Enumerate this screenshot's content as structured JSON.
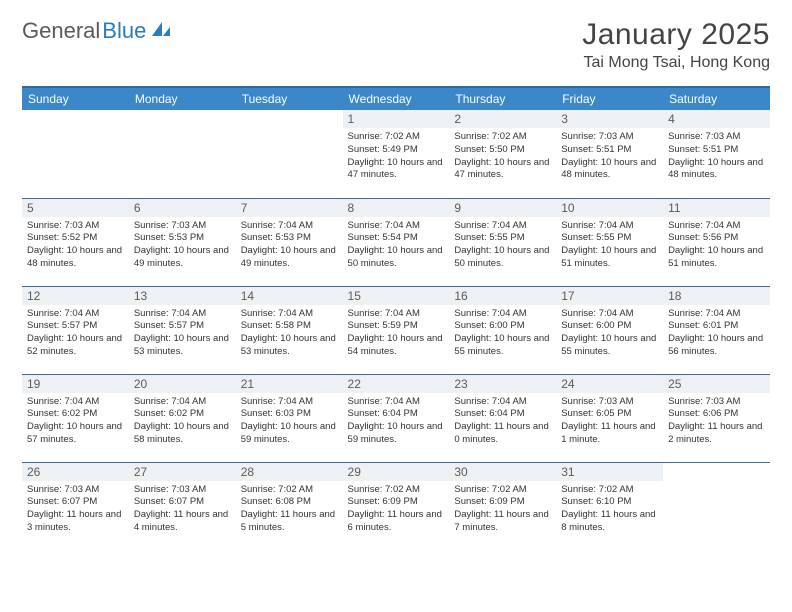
{
  "brand": {
    "part1": "General",
    "part2": "Blue"
  },
  "title": "January 2025",
  "location": "Tai Mong Tsai, Hong Kong",
  "colors": {
    "header_bg": "#3b87c8",
    "header_border_top": "#2b6aa0",
    "row_border": "#3b6f9e",
    "daynum_bg": "#eef1f4",
    "text": "#333333",
    "brand_gray": "#5a5a5a",
    "brand_blue": "#2b7bbf"
  },
  "weekdays": [
    "Sunday",
    "Monday",
    "Tuesday",
    "Wednesday",
    "Thursday",
    "Friday",
    "Saturday"
  ],
  "weeks": [
    [
      null,
      null,
      null,
      {
        "n": "1",
        "sr": "7:02 AM",
        "ss": "5:49 PM",
        "dl": "10 hours and 47 minutes."
      },
      {
        "n": "2",
        "sr": "7:02 AM",
        "ss": "5:50 PM",
        "dl": "10 hours and 47 minutes."
      },
      {
        "n": "3",
        "sr": "7:03 AM",
        "ss": "5:51 PM",
        "dl": "10 hours and 48 minutes."
      },
      {
        "n": "4",
        "sr": "7:03 AM",
        "ss": "5:51 PM",
        "dl": "10 hours and 48 minutes."
      }
    ],
    [
      {
        "n": "5",
        "sr": "7:03 AM",
        "ss": "5:52 PM",
        "dl": "10 hours and 48 minutes."
      },
      {
        "n": "6",
        "sr": "7:03 AM",
        "ss": "5:53 PM",
        "dl": "10 hours and 49 minutes."
      },
      {
        "n": "7",
        "sr": "7:04 AM",
        "ss": "5:53 PM",
        "dl": "10 hours and 49 minutes."
      },
      {
        "n": "8",
        "sr": "7:04 AM",
        "ss": "5:54 PM",
        "dl": "10 hours and 50 minutes."
      },
      {
        "n": "9",
        "sr": "7:04 AM",
        "ss": "5:55 PM",
        "dl": "10 hours and 50 minutes."
      },
      {
        "n": "10",
        "sr": "7:04 AM",
        "ss": "5:55 PM",
        "dl": "10 hours and 51 minutes."
      },
      {
        "n": "11",
        "sr": "7:04 AM",
        "ss": "5:56 PM",
        "dl": "10 hours and 51 minutes."
      }
    ],
    [
      {
        "n": "12",
        "sr": "7:04 AM",
        "ss": "5:57 PM",
        "dl": "10 hours and 52 minutes."
      },
      {
        "n": "13",
        "sr": "7:04 AM",
        "ss": "5:57 PM",
        "dl": "10 hours and 53 minutes."
      },
      {
        "n": "14",
        "sr": "7:04 AM",
        "ss": "5:58 PM",
        "dl": "10 hours and 53 minutes."
      },
      {
        "n": "15",
        "sr": "7:04 AM",
        "ss": "5:59 PM",
        "dl": "10 hours and 54 minutes."
      },
      {
        "n": "16",
        "sr": "7:04 AM",
        "ss": "6:00 PM",
        "dl": "10 hours and 55 minutes."
      },
      {
        "n": "17",
        "sr": "7:04 AM",
        "ss": "6:00 PM",
        "dl": "10 hours and 55 minutes."
      },
      {
        "n": "18",
        "sr": "7:04 AM",
        "ss": "6:01 PM",
        "dl": "10 hours and 56 minutes."
      }
    ],
    [
      {
        "n": "19",
        "sr": "7:04 AM",
        "ss": "6:02 PM",
        "dl": "10 hours and 57 minutes."
      },
      {
        "n": "20",
        "sr": "7:04 AM",
        "ss": "6:02 PM",
        "dl": "10 hours and 58 minutes."
      },
      {
        "n": "21",
        "sr": "7:04 AM",
        "ss": "6:03 PM",
        "dl": "10 hours and 59 minutes."
      },
      {
        "n": "22",
        "sr": "7:04 AM",
        "ss": "6:04 PM",
        "dl": "10 hours and 59 minutes."
      },
      {
        "n": "23",
        "sr": "7:04 AM",
        "ss": "6:04 PM",
        "dl": "11 hours and 0 minutes."
      },
      {
        "n": "24",
        "sr": "7:03 AM",
        "ss": "6:05 PM",
        "dl": "11 hours and 1 minute."
      },
      {
        "n": "25",
        "sr": "7:03 AM",
        "ss": "6:06 PM",
        "dl": "11 hours and 2 minutes."
      }
    ],
    [
      {
        "n": "26",
        "sr": "7:03 AM",
        "ss": "6:07 PM",
        "dl": "11 hours and 3 minutes."
      },
      {
        "n": "27",
        "sr": "7:03 AM",
        "ss": "6:07 PM",
        "dl": "11 hours and 4 minutes."
      },
      {
        "n": "28",
        "sr": "7:02 AM",
        "ss": "6:08 PM",
        "dl": "11 hours and 5 minutes."
      },
      {
        "n": "29",
        "sr": "7:02 AM",
        "ss": "6:09 PM",
        "dl": "11 hours and 6 minutes."
      },
      {
        "n": "30",
        "sr": "7:02 AM",
        "ss": "6:09 PM",
        "dl": "11 hours and 7 minutes."
      },
      {
        "n": "31",
        "sr": "7:02 AM",
        "ss": "6:10 PM",
        "dl": "11 hours and 8 minutes."
      },
      null
    ]
  ],
  "labels": {
    "sunrise": "Sunrise:",
    "sunset": "Sunset:",
    "daylight": "Daylight:"
  }
}
